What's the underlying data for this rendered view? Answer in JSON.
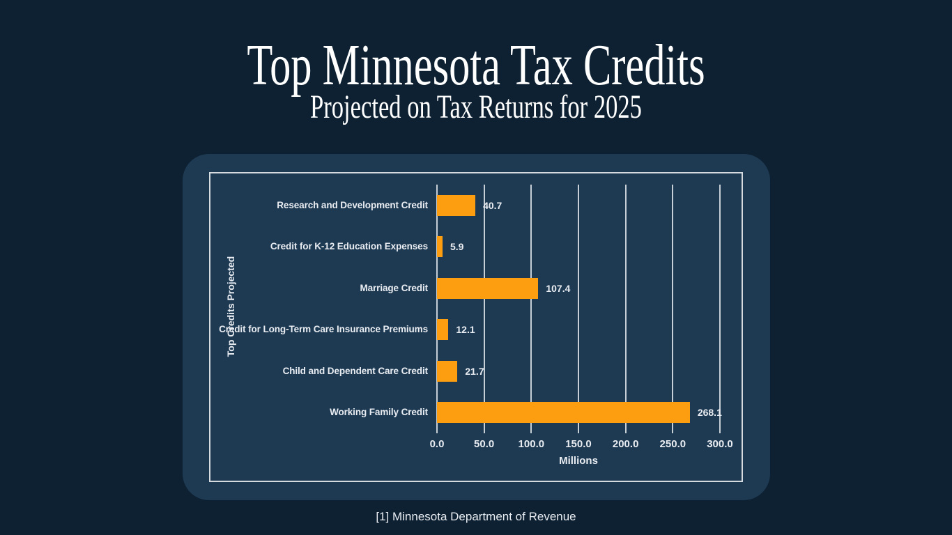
{
  "page": {
    "source_note": "[1] Minnesota Department of Revenue",
    "colors": {
      "background": "#0D2132",
      "card": "#1E3A53",
      "bar": "#FC9E10",
      "text": "#E9EDF2",
      "frame_border": "#D6DBDF",
      "gridline": "#C7CFD6"
    }
  },
  "chart_data": {
    "type": "bar",
    "orientation": "horizontal",
    "title": "Top Minnesota Tax Credits",
    "subtitle": "Projected on Tax Returns for 2025",
    "categories": [
      "Research and Development Credit",
      "Credit for K-12 Education Expenses",
      "Marriage Credit",
      "Credit for Long-Term Care Insurance Premiums",
      "Child and Dependent Care Credit",
      "Working Family Credit"
    ],
    "values": [
      40.7,
      5.9,
      107.4,
      12.1,
      21.7,
      268.1
    ],
    "value_labels": [
      "40.7",
      "5.9",
      "107.4",
      "12.1",
      "21.7",
      "268.1"
    ],
    "xlabel": "Millions",
    "ylabel": "Top Credits Projected",
    "xlim": [
      0,
      300
    ],
    "xticks": [
      0,
      50,
      100,
      150,
      200,
      250,
      300
    ],
    "xtick_labels": [
      "0.0",
      "50.0",
      "100.0",
      "150.0",
      "200.0",
      "250.0",
      "300.0"
    ],
    "grid": true,
    "legend": false,
    "bar_color": "#FC9E10"
  }
}
